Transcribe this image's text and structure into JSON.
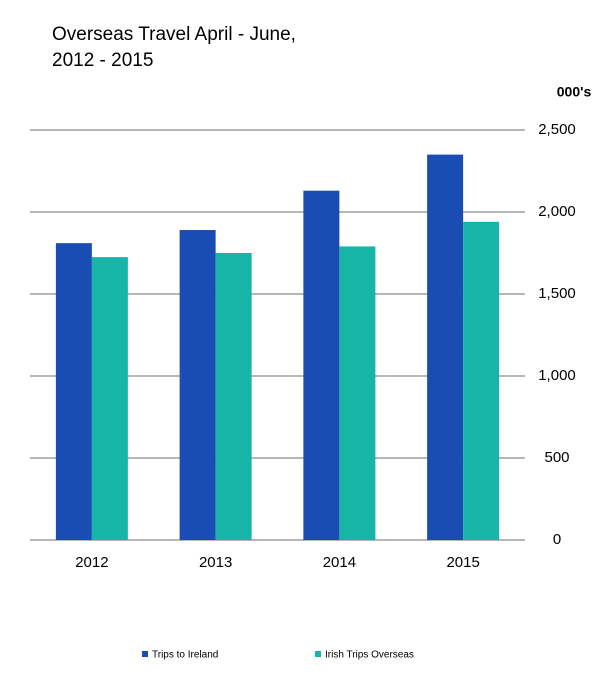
{
  "chart_data": {
    "type": "bar",
    "title": [
      "Overseas  Travel April - June,",
      "2012  - 2015"
    ],
    "y_label": "000's",
    "categories": [
      "2012",
      "2013",
      "2014",
      "2015"
    ],
    "series": [
      {
        "name": "Trips to Ireland",
        "color": "#1a4db3",
        "values": [
          1810,
          1890,
          2130,
          2350
        ]
      },
      {
        "name": "Irish Trips Overseas",
        "color": "#17b4a8",
        "values": [
          1725,
          1750,
          1790,
          1940
        ]
      }
    ],
    "ylim": [
      0,
      2500
    ],
    "yticks": [
      0,
      {
        "value": 500,
        "label": "500"
      },
      {
        "value": 1000,
        "label": "1,000"
      },
      {
        "value": 1500,
        "label": "1,500"
      },
      {
        "value": 2000,
        "label": "2,000"
      },
      {
        "value": 2500,
        "label": "2,500"
      }
    ],
    "grid": true,
    "legend": "bottom"
  }
}
